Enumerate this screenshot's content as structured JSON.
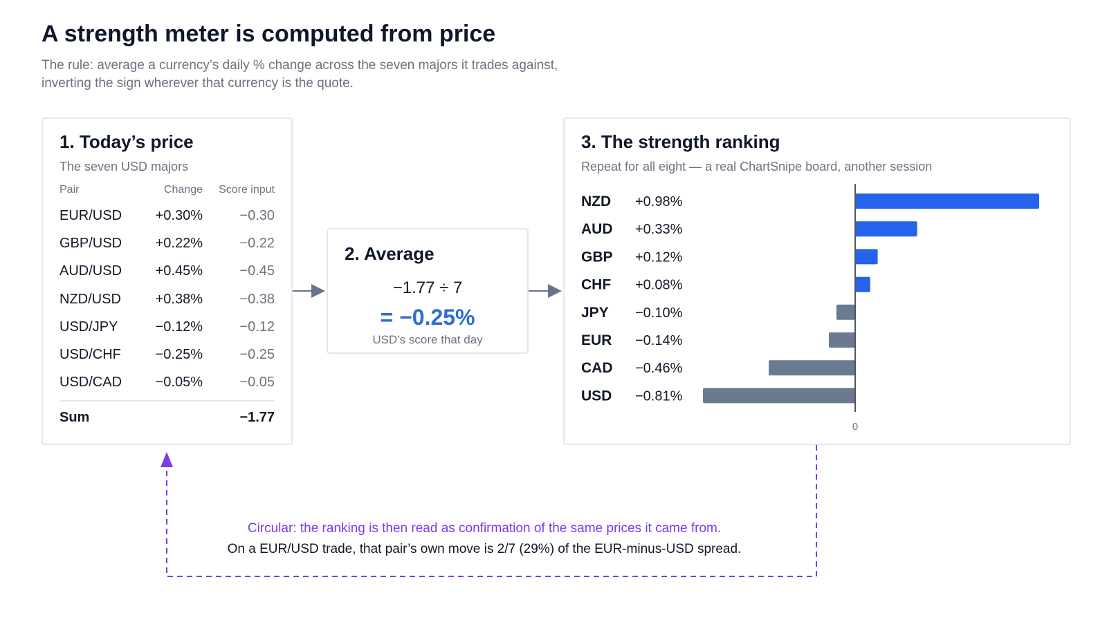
{
  "header": {
    "title": "A strength meter is computed from price",
    "subtitle_line1": "The rule: average a currency’s daily % change across the seven majors it trades against,",
    "subtitle_line2": "inverting the sign wherever that currency is the quote."
  },
  "price_card": {
    "title": "1. Today’s price",
    "subtitle": "The seven USD majors",
    "columns": {
      "pair": "Pair",
      "change": "Change",
      "score": "Score input"
    },
    "rows": [
      {
        "pair": "EUR/USD",
        "change": "+0.30%",
        "score": "−0.30"
      },
      {
        "pair": "GBP/USD",
        "change": "+0.22%",
        "score": "−0.22"
      },
      {
        "pair": "AUD/USD",
        "change": "+0.45%",
        "score": "−0.45"
      },
      {
        "pair": "NZD/USD",
        "change": "+0.38%",
        "score": "−0.38"
      },
      {
        "pair": "USD/JPY",
        "change": "−0.12%",
        "score": "−0.12"
      },
      {
        "pair": "USD/CHF",
        "change": "−0.25%",
        "score": "−0.25"
      },
      {
        "pair": "USD/CAD",
        "change": "−0.05%",
        "score": "−0.05"
      }
    ],
    "sum_label": "Sum",
    "sum_value": "−1.77"
  },
  "average_card": {
    "title": "2. Average",
    "formula": "−1.77 ÷ 7",
    "result": "= −0.25%",
    "caption": "USD’s score that day"
  },
  "ranking_card": {
    "title": "3. The strength ranking",
    "subtitle": "Repeat for all eight — a real ChartSnipe board, another session"
  },
  "chart_data": {
    "type": "bar",
    "orientation": "horizontal",
    "categories": [
      "NZD",
      "AUD",
      "GBP",
      "CHF",
      "JPY",
      "EUR",
      "CAD",
      "USD"
    ],
    "values": [
      0.98,
      0.33,
      0.12,
      0.08,
      -0.1,
      -0.14,
      -0.46,
      -0.81
    ],
    "value_labels": [
      "+0.98%",
      "+0.33%",
      "+0.12%",
      "+0.08%",
      "−0.10%",
      "−0.14%",
      "−0.46%",
      "−0.81%"
    ],
    "zero_tick_label": "0",
    "xlim": [
      -0.81,
      0.98
    ],
    "positive_color": "#2563eb",
    "negative_color": "#6b7a90",
    "axis_color": "#4b5563"
  },
  "notes": {
    "circular": "Circular: the ranking is then read as confirmation of the same prices it came from.",
    "spread": "On a EUR/USD trade, that pair’s own move is 2/7 (29%) of the EUR-minus-USD spread."
  },
  "colors": {
    "accent_blue": "#2f6bd8",
    "loop_purple": "#7c3aed",
    "arrow_gray": "#64748b"
  }
}
